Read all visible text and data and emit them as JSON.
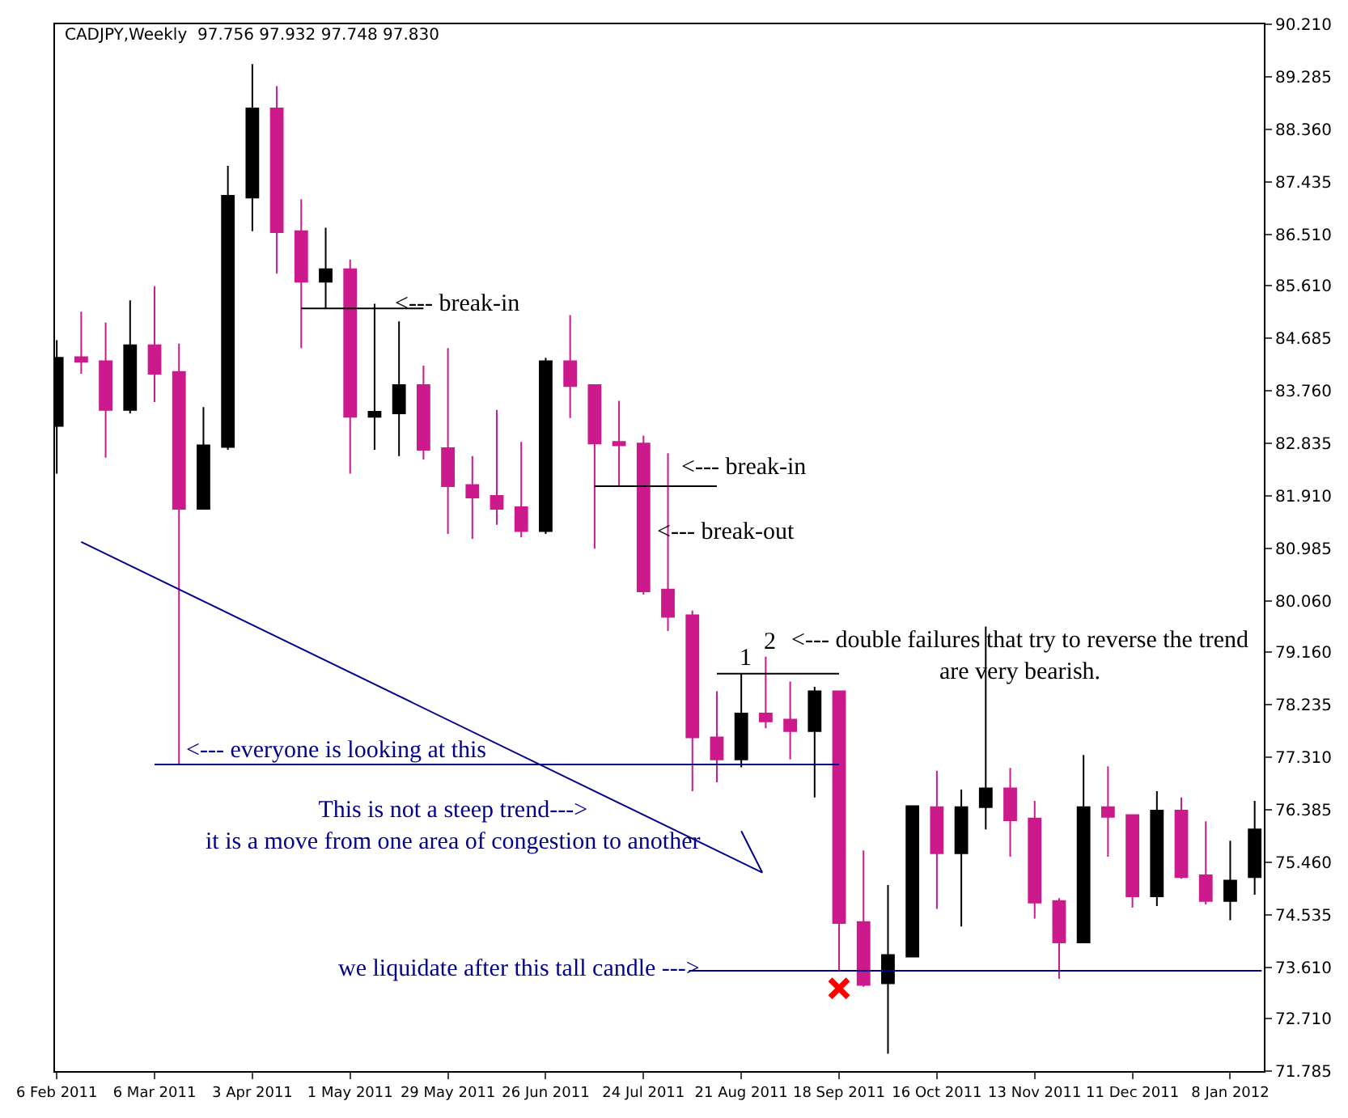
{
  "chart_data": {
    "type": "candlestick",
    "title": "CADJPY,Weekly  97.756 97.932 97.748 97.830",
    "x": [
      "2011-02-06",
      "2011-02-13",
      "2011-02-20",
      "2011-02-27",
      "2011-03-06",
      "2011-03-13",
      "2011-03-20",
      "2011-03-27",
      "2011-04-03",
      "2011-04-10",
      "2011-04-17",
      "2011-04-24",
      "2011-05-01",
      "2011-05-08",
      "2011-05-15",
      "2011-05-22",
      "2011-05-29",
      "2011-06-05",
      "2011-06-12",
      "2011-06-19",
      "2011-06-26",
      "2011-07-03",
      "2011-07-10",
      "2011-07-17",
      "2011-07-24",
      "2011-07-31",
      "2011-08-07",
      "2011-08-14",
      "2011-08-21",
      "2011-08-28",
      "2011-09-04",
      "2011-09-11",
      "2011-09-18",
      "2011-09-25",
      "2011-10-02",
      "2011-10-09",
      "2011-10-16",
      "2011-10-23",
      "2011-10-30",
      "2011-11-06",
      "2011-11-13",
      "2011-11-20",
      "2011-11-27",
      "2011-12-04",
      "2011-12-11",
      "2011-12-18",
      "2011-12-25",
      "2012-01-01",
      "2012-01-08",
      "2012-01-15"
    ],
    "ohlc": [
      [
        83.14,
        84.65,
        82.3,
        84.34
      ],
      [
        84.35,
        85.15,
        84.06,
        84.27
      ],
      [
        84.28,
        84.96,
        82.58,
        83.42
      ],
      [
        83.42,
        85.35,
        83.36,
        84.56
      ],
      [
        84.56,
        85.6,
        83.56,
        84.06
      ],
      [
        84.09,
        84.59,
        77.18,
        81.68
      ],
      [
        81.68,
        83.47,
        81.68,
        82.8
      ],
      [
        82.77,
        87.72,
        82.72,
        87.19
      ],
      [
        87.16,
        89.51,
        86.57,
        88.73
      ],
      [
        88.73,
        89.12,
        85.82,
        86.55
      ],
      [
        86.57,
        87.13,
        84.51,
        85.68
      ],
      [
        85.68,
        86.63,
        85.21,
        85.9
      ],
      [
        85.9,
        86.07,
        82.3,
        83.3
      ],
      [
        83.3,
        85.29,
        82.72,
        83.39
      ],
      [
        83.36,
        84.98,
        82.61,
        83.86
      ],
      [
        83.86,
        84.2,
        82.55,
        82.72
      ],
      [
        82.75,
        84.51,
        81.24,
        82.08
      ],
      [
        82.1,
        82.61,
        81.15,
        81.88
      ],
      [
        81.91,
        83.42,
        81.4,
        81.68
      ],
      [
        81.71,
        82.86,
        81.18,
        81.29
      ],
      [
        81.29,
        84.34,
        81.24,
        84.28
      ],
      [
        84.28,
        85.09,
        83.28,
        83.84
      ],
      [
        83.86,
        83.86,
        80.98,
        82.83
      ],
      [
        82.86,
        83.58,
        82.08,
        82.8
      ],
      [
        82.83,
        82.97,
        80.17,
        80.23
      ],
      [
        80.26,
        82.66,
        79.53,
        79.78
      ],
      [
        79.81,
        79.89,
        76.71,
        77.66
      ],
      [
        77.66,
        78.47,
        76.87,
        77.27
      ],
      [
        77.27,
        78.78,
        77.13,
        78.08
      ],
      [
        78.08,
        79.08,
        77.82,
        77.94
      ],
      [
        77.97,
        78.64,
        77.27,
        77.77
      ],
      [
        77.77,
        78.55,
        76.6,
        78.47
      ],
      [
        78.47,
        78.47,
        73.55,
        74.39
      ],
      [
        74.41,
        75.67,
        73.27,
        73.3
      ],
      [
        73.33,
        75.06,
        72.09,
        73.83
      ],
      [
        73.8,
        76.45,
        73.8,
        76.45
      ],
      [
        76.43,
        77.07,
        74.64,
        75.62
      ],
      [
        75.62,
        76.74,
        74.33,
        76.43
      ],
      [
        76.43,
        79.61,
        76.04,
        76.76
      ],
      [
        76.76,
        77.12,
        75.56,
        76.2
      ],
      [
        76.23,
        76.54,
        74.47,
        74.75
      ],
      [
        74.78,
        74.83,
        73.41,
        74.05
      ],
      [
        74.05,
        77.35,
        74.05,
        76.43
      ],
      [
        76.43,
        77.15,
        75.56,
        76.26
      ],
      [
        76.29,
        76.29,
        74.66,
        74.86
      ],
      [
        74.86,
        76.71,
        74.69,
        76.37
      ],
      [
        76.37,
        76.6,
        75.17,
        75.2
      ],
      [
        75.23,
        76.18,
        74.72,
        74.78
      ],
      [
        74.78,
        75.84,
        74.44,
        75.14
      ],
      [
        75.2,
        76.54,
        74.89,
        76.04
      ]
    ],
    "colors": [
      "#000000",
      "#cc1a8c",
      "#cc1a8c",
      "#000000",
      "#cc1a8c",
      "#cc1a8c",
      "#000000",
      "#000000",
      "#000000",
      "#cc1a8c",
      "#cc1a8c",
      "#000000",
      "#cc1a8c",
      "#000000",
      "#000000",
      "#cc1a8c",
      "#cc1a8c",
      "#cc1a8c",
      "#cc1a8c",
      "#cc1a8c",
      "#000000",
      "#cc1a8c",
      "#cc1a8c",
      "#cc1a8c",
      "#cc1a8c",
      "#cc1a8c",
      "#cc1a8c",
      "#cc1a8c",
      "#000000",
      "#cc1a8c",
      "#cc1a8c",
      "#000000",
      "#cc1a8c",
      "#cc1a8c",
      "#000000",
      "#000000",
      "#cc1a8c",
      "#000000",
      "#000000",
      "#cc1a8c",
      "#cc1a8c",
      "#cc1a8c",
      "#000000",
      "#cc1a8c",
      "#cc1a8c",
      "#000000",
      "#cc1a8c",
      "#cc1a8c",
      "#000000",
      "#000000"
    ],
    "series": [
      {
        "type": "line",
        "color": "#000000",
        "x": [
          "2011-04-17",
          "2011-05-22"
        ],
        "values": [
          85.21,
          85.21
        ]
      },
      {
        "type": "line",
        "color": "#000000",
        "x": [
          "2011-07-10",
          "2011-08-14"
        ],
        "values": [
          82.08,
          82.08
        ]
      },
      {
        "type": "line",
        "color": "#000000",
        "x": [
          "2011-08-14",
          "2011-09-18"
        ],
        "values": [
          78.78,
          78.78
        ]
      },
      {
        "type": "line",
        "color": "#00008b",
        "x": [
          "2011-03-06",
          "2011-09-18"
        ],
        "values": [
          77.18,
          77.18
        ]
      },
      {
        "type": "line",
        "color": "#00008b",
        "x": [
          "2011-08-06",
          "2012-01-17"
        ],
        "values": [
          73.55,
          73.55
        ]
      },
      {
        "type": "line",
        "color": "#00008b",
        "x": [
          "2011-02-13",
          "2011-08-27",
          "2011-08-21"
        ],
        "values": [
          81.1,
          75.28,
          76.01
        ]
      },
      {
        "type": "scatter",
        "color": "#ff0000",
        "marker": "cross",
        "x": [
          "2011-09-18"
        ],
        "values": [
          73.24
        ]
      }
    ],
    "annotations": [
      {
        "text": "<--- break-in",
        "x": "2011-05-13",
        "y": 85.29
      },
      "<--- break-in",
      {
        "text": "<--- break-out",
        "x": "2011-07-27",
        "y": 81.26
      },
      "1",
      "2",
      "<--- double failures that try to reverse the trend\nare very bearish.",
      {
        "text": "<--- everyone is looking at this",
        "x": "2011-03-14",
        "y": 77.43
      },
      "This is not a steep trend--->\nit is a move from one area of congestion to another",
      "we liquidate after this tall candle --->"
    ],
    "xlim": [
      "2011-02-05T12:00",
      "2012-01-17T15:00"
    ],
    "xticks": [
      {
        "value": "2011-02-06",
        "label": "6 Feb 2011"
      },
      {
        "value": "2011-03-06",
        "label": "6 Mar 2011"
      },
      {
        "value": "2011-04-03",
        "label": "3 Apr 2011"
      },
      {
        "value": "2011-05-01",
        "label": "1 May 2011"
      },
      {
        "value": "2011-05-29",
        "label": "29 May 2011"
      },
      {
        "value": "2011-06-26",
        "label": "26 Jun 2011"
      },
      {
        "value": "2011-07-24",
        "label": "24 Jul 2011"
      },
      {
        "value": "2011-08-21",
        "label": "21 Aug 2011"
      },
      {
        "value": "2011-09-18",
        "label": "18 Sep 2011"
      },
      {
        "value": "2011-10-16",
        "label": "16 Oct 2011"
      },
      {
        "value": "2011-11-13",
        "label": "13 Nov 2011"
      },
      {
        "value": "2011-12-11",
        "label": "11 Dec 2011"
      },
      {
        "value": "2012-01-08",
        "label": "8 Jan 2012"
      }
    ],
    "ylim": [
      71.785,
      90.21
    ],
    "yticks": [
      {
        "value": 90.21,
        "label": "90.210"
      },
      {
        "value": 89.285,
        "label": "89.285"
      },
      {
        "value": 88.36,
        "label": "88.360"
      },
      {
        "value": 87.435,
        "label": "87.435"
      },
      {
        "value": 86.51,
        "label": "86.510"
      },
      {
        "value": 85.61,
        "label": "85.610"
      },
      {
        "value": 84.685,
        "label": "84.685"
      },
      {
        "value": 83.76,
        "label": "83.760"
      },
      {
        "value": 82.835,
        "label": "82.835"
      },
      {
        "value": 81.91,
        "label": "81.910"
      },
      {
        "value": 80.985,
        "label": "80.985"
      },
      {
        "value": 80.06,
        "label": "80.060"
      },
      {
        "value": 79.16,
        "label": "79.160"
      },
      {
        "value": 78.235,
        "label": "78.235"
      },
      {
        "value": 77.31,
        "label": "77.310"
      },
      {
        "value": 76.385,
        "label": "76.385"
      },
      {
        "value": 75.46,
        "label": "75.460"
      },
      {
        "value": 74.535,
        "label": "74.535"
      },
      {
        "value": 73.61,
        "label": "73.610"
      },
      {
        "value": 72.71,
        "label": "72.710"
      },
      {
        "value": 71.785,
        "label": "71.785"
      }
    ]
  }
}
